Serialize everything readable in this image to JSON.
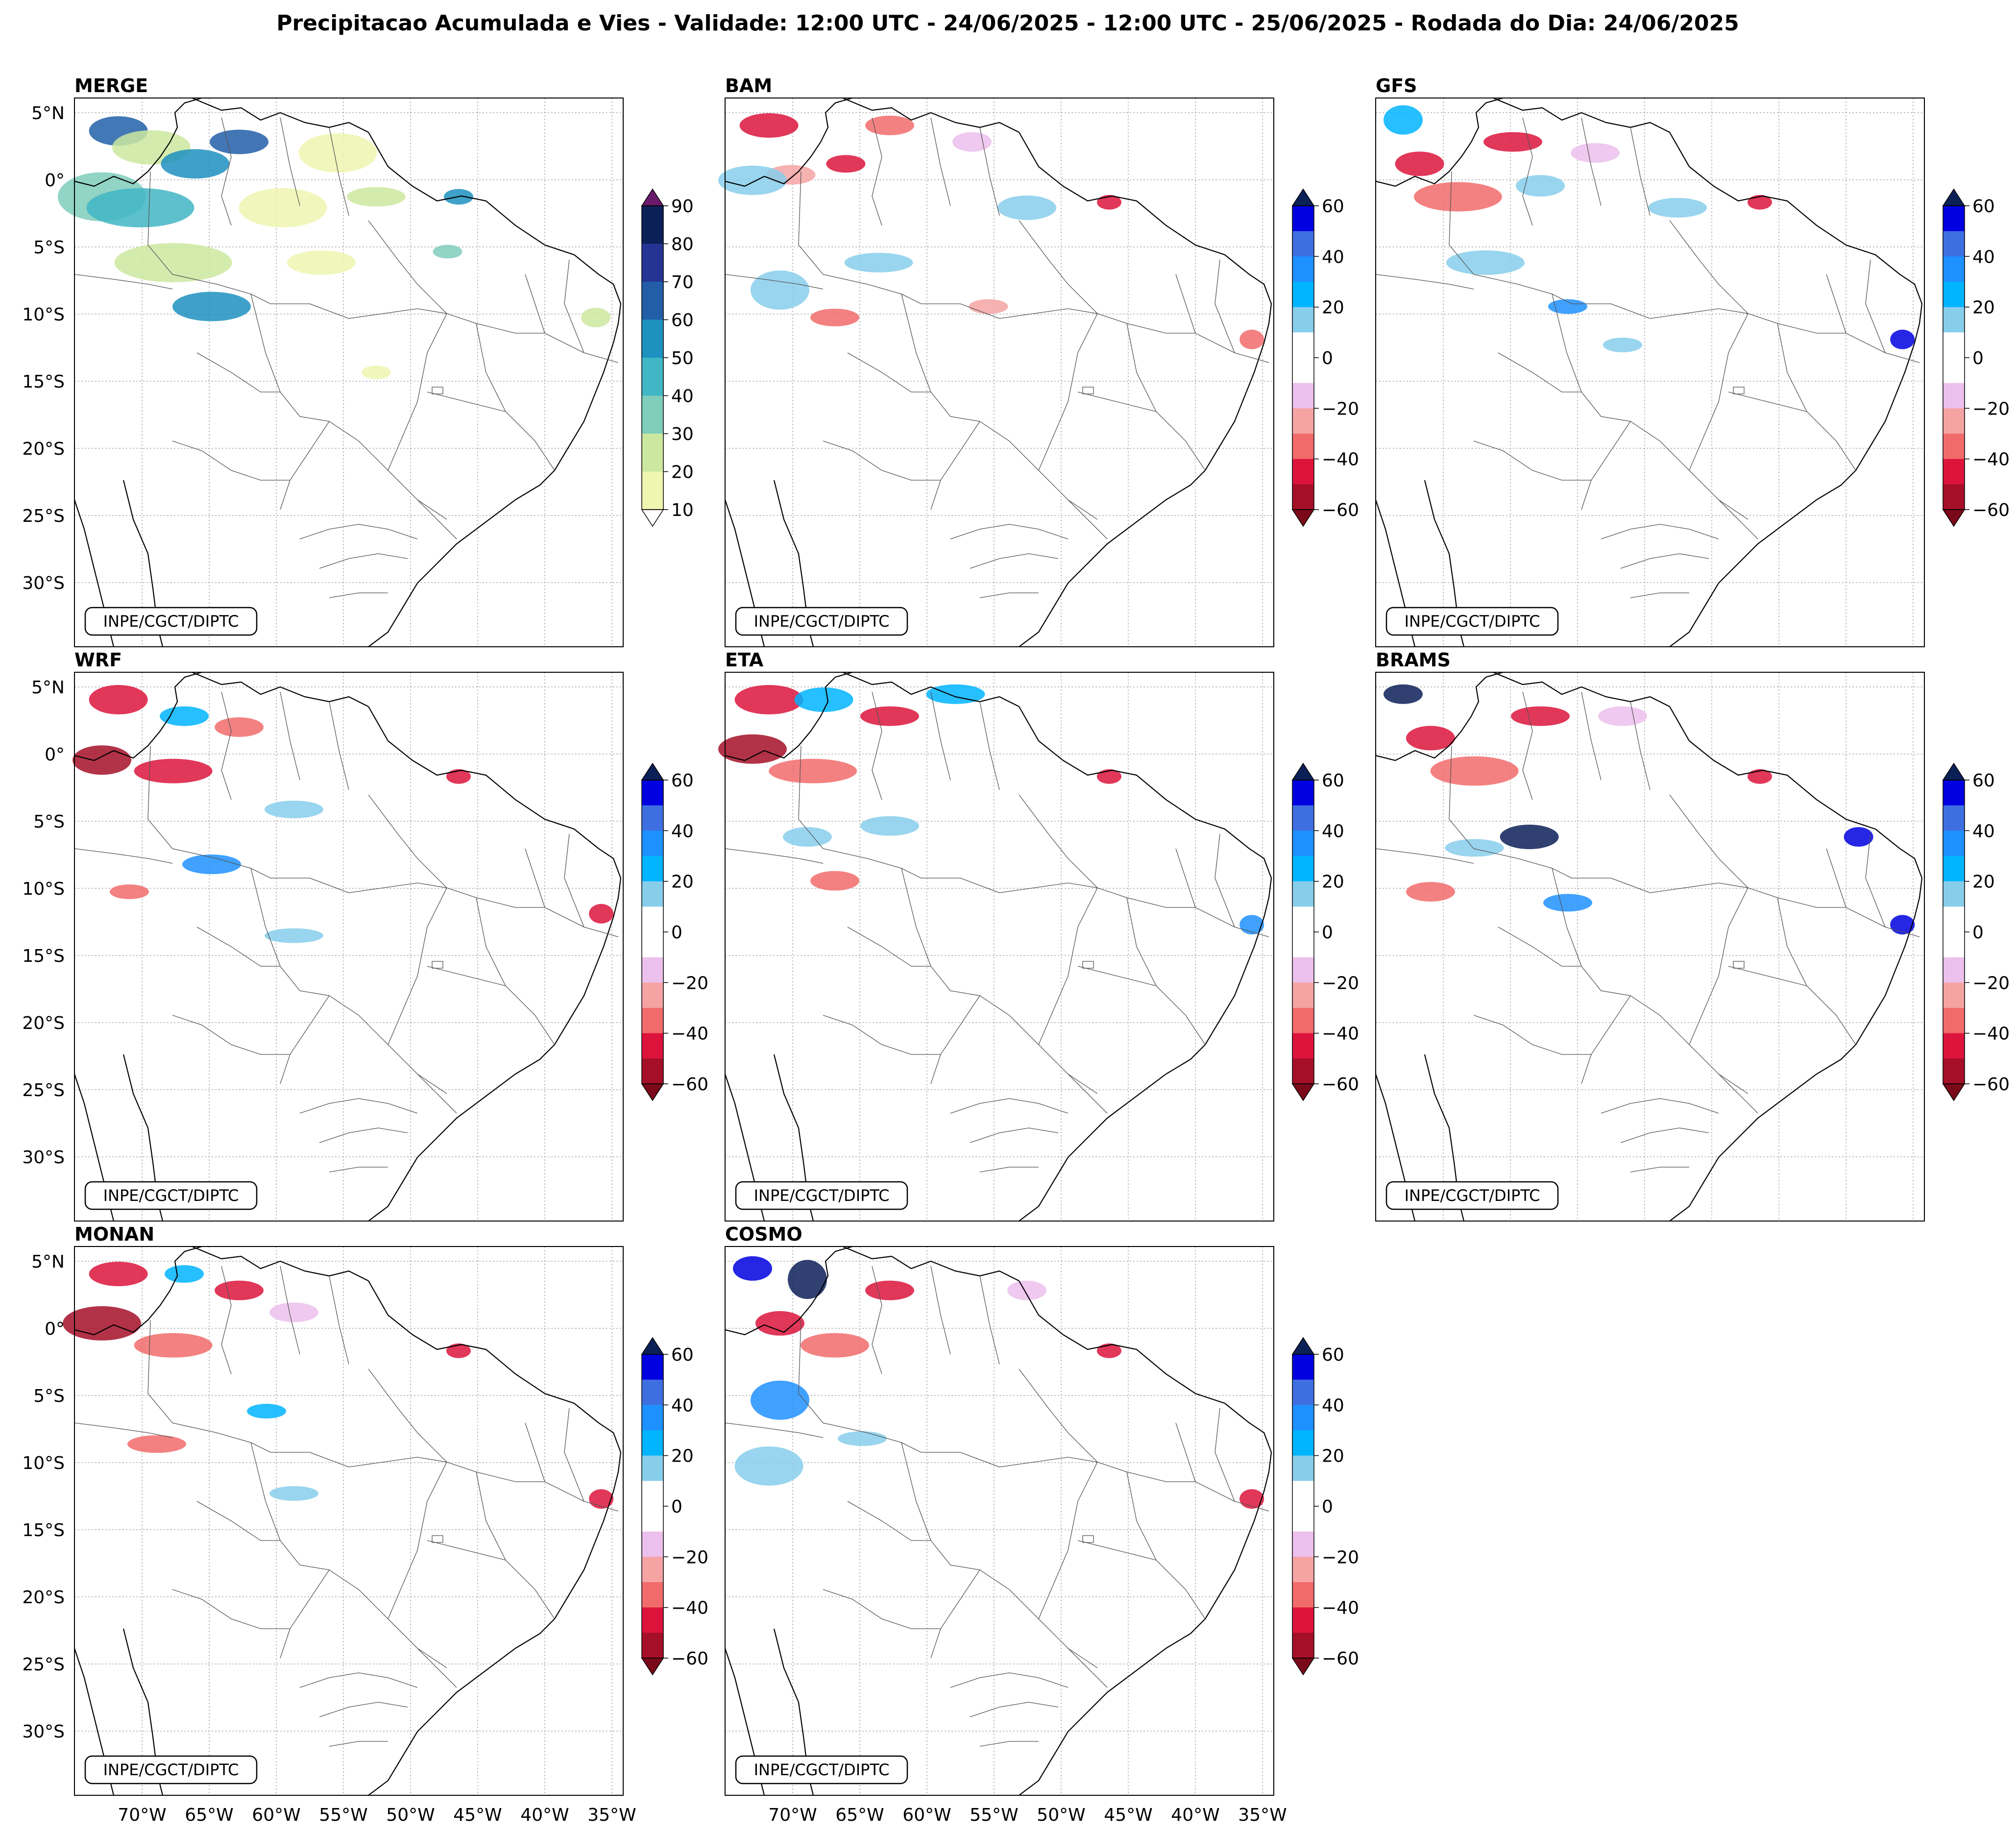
{
  "title": "Precipitacao Acumulada e Vies - Validade: 12:00 UTC - 24/06/2025 - 12:00 UTC - 25/06/2025 - Rodada do Dia: 24/06/2025",
  "credit": "INPE/CGCT/DIPTC",
  "lat_labels": [
    "5°N",
    "0°",
    "5°S",
    "10°S",
    "15°S",
    "20°S",
    "25°S",
    "30°S"
  ],
  "lon_labels": [
    "70°W",
    "65°W",
    "60°W",
    "55°W",
    "50°W",
    "45°W",
    "40°W",
    "35°W"
  ],
  "panels": [
    {
      "name": "MERGE",
      "kind": "precip"
    },
    {
      "name": "BAM",
      "kind": "bias"
    },
    {
      "name": "GFS",
      "kind": "bias"
    },
    {
      "name": "WRF",
      "kind": "bias"
    },
    {
      "name": "ETA",
      "kind": "bias"
    },
    {
      "name": "BRAMS",
      "kind": "bias"
    },
    {
      "name": "MONAN",
      "kind": "bias"
    },
    {
      "name": "COSMO",
      "kind": "bias"
    }
  ],
  "precip_scale": {
    "ticks": [
      "10",
      "20",
      "30",
      "40",
      "50",
      "60",
      "70",
      "80",
      "90"
    ],
    "colors": [
      "#eef6b0",
      "#cce8a0",
      "#7fcdbb",
      "#41b6c4",
      "#1d91c0",
      "#225ea8",
      "#253494",
      "#0c2058"
    ],
    "over_color": "#6a1a6a",
    "under_color": "#ffffff"
  },
  "bias_scale": {
    "ticks": [
      "60",
      "40",
      "20",
      "0",
      "−20",
      "−40",
      "−60"
    ],
    "colors": [
      "#0000e0",
      "#3e6fe0",
      "#1e90ff",
      "#00b4ff",
      "#87ceeb",
      "#ffffff",
      "#ffffff",
      "#ecc0ec",
      "#f5a3a3",
      "#f26b6b",
      "#dc143c",
      "#a50f28"
    ],
    "over_color": "#0c2058",
    "under_color": "#7a0a1a"
  }
}
